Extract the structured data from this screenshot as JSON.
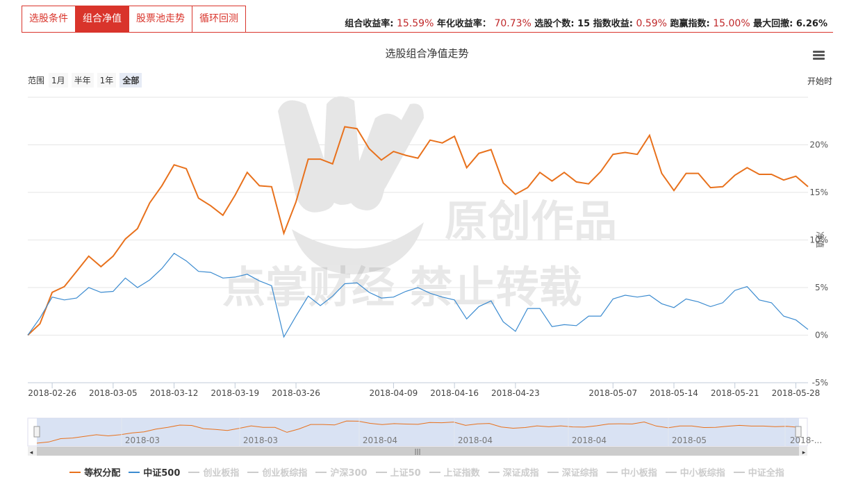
{
  "tabs": [
    {
      "label": "选股条件",
      "active": false
    },
    {
      "label": "组合净值",
      "active": true
    },
    {
      "label": "股票池走势",
      "active": false
    },
    {
      "label": "循环回测",
      "active": false
    }
  ],
  "stats": [
    {
      "label": "组合收益率:",
      "value": "15.59%"
    },
    {
      "label": "年化收益率：",
      "value": "70.73%"
    },
    {
      "label": "选股个数:",
      "value": "15"
    },
    {
      "label": "指数收益:",
      "value": "0.59%"
    },
    {
      "label": "跑赢指数:",
      "value": "15.00%"
    },
    {
      "label": "最大回撤:",
      "value": "6.26%"
    }
  ],
  "range": {
    "label": "范围",
    "buttons": [
      "1月",
      "半年",
      "1年",
      "全部"
    ],
    "selected": "全部"
  },
  "start_label": "开始时",
  "watermark": {
    "line1": "原创作品",
    "line2": "点掌财经 禁止转载"
  },
  "colors": {
    "accent": "#d9342b",
    "series1": "#e8711c",
    "series2": "#3b8bd0",
    "grid": "#e6e6e6"
  },
  "chart_data": {
    "type": "line",
    "title": "选股组合净值走势",
    "ylabel": "净值",
    "ylim": [
      -5,
      25
    ],
    "yticks": [
      -5,
      0,
      5,
      10,
      15,
      20
    ],
    "ytick_labels": [
      "-5%",
      "0%",
      "5%",
      "10%",
      "15%",
      "20%"
    ],
    "xticks": [
      {
        "i": 2,
        "label": "2018-02-26"
      },
      {
        "i": 7,
        "label": "2018-03-05"
      },
      {
        "i": 12,
        "label": "2018-03-12"
      },
      {
        "i": 17,
        "label": "2018-03-19"
      },
      {
        "i": 22,
        "label": "2018-03-26"
      },
      {
        "i": 30,
        "label": "2018-04-09"
      },
      {
        "i": 35,
        "label": "2018-04-16"
      },
      {
        "i": 40,
        "label": "2018-04-23"
      },
      {
        "i": 48,
        "label": "2018-05-07"
      },
      {
        "i": 53,
        "label": "2018-05-14"
      },
      {
        "i": 58,
        "label": "2018-05-21"
      },
      {
        "i": 63,
        "label": "2018-05-28"
      }
    ],
    "series": [
      {
        "name": "等权分配",
        "values": [
          0,
          1.2,
          4.5,
          5.1,
          6.7,
          8.3,
          7.2,
          8.3,
          10.1,
          11.2,
          13.9,
          15.7,
          17.9,
          17.5,
          14.4,
          13.6,
          12.6,
          14.7,
          17.1,
          15.7,
          15.6,
          10.7,
          14,
          18.5,
          18.5,
          18,
          21.9,
          21.7,
          19.6,
          18.4,
          19.3,
          18.9,
          18.6,
          20.5,
          20.2,
          20.9,
          17.6,
          19.1,
          19.5,
          16,
          14.8,
          15.5,
          17.1,
          16.2,
          17.1,
          16.1,
          15.9,
          17.2,
          19,
          19.2,
          19,
          21,
          17,
          15.2,
          17,
          17,
          15.5,
          15.6,
          16.8,
          17.6,
          16.9,
          16.9,
          16.3,
          16.7,
          15.6
        ]
      },
      {
        "name": "中证500",
        "values": [
          0,
          1.8,
          4,
          3.7,
          3.9,
          5,
          4.5,
          4.6,
          6,
          5,
          5.8,
          7,
          8.6,
          7.8,
          6.7,
          6.6,
          6,
          6.1,
          6.4,
          5.7,
          5.2,
          -0.2,
          2,
          4.1,
          3.1,
          4.1,
          5.4,
          5.5,
          4.5,
          3.9,
          4,
          4.6,
          5,
          4.4,
          4,
          3.7,
          1.7,
          3,
          3.6,
          1.4,
          0.4,
          2.8,
          2.8,
          0.9,
          1.1,
          1,
          2,
          2,
          3.8,
          4.2,
          4,
          4.2,
          3.3,
          2.9,
          3.8,
          3.5,
          3,
          3.4,
          4.7,
          5.1,
          3.7,
          3.4,
          2,
          1.6,
          0.6
        ]
      }
    ],
    "inactive_series": [
      "创业板指",
      "创业板综指",
      "沪深300",
      "上证50",
      "上证指数",
      "深证成指",
      "深证综指",
      "中小板指",
      "中小板综指",
      "中证全指"
    ],
    "navigator_labels": [
      "2018-03",
      "2018-03",
      "2018-04",
      "2018-04",
      "2018-04",
      "2018-05",
      "2018-..."
    ]
  }
}
